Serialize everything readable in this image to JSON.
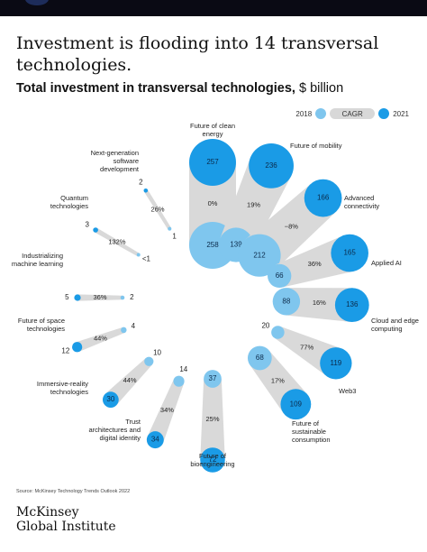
{
  "header": {
    "title": "Investment is flooding into 14 transversal technologies.",
    "subtitle_bold": "Total investment in transversal technologies,",
    "subtitle_unit": " $ billion"
  },
  "legend": {
    "start_label": "2018",
    "mid_label": "CAGR",
    "end_label": "2021"
  },
  "colors": {
    "y2018": "#7fc6ee",
    "y2021": "#1a9be6",
    "connector": "#d9d9d9",
    "label_dark": "#0b2a4a"
  },
  "chart_data": {
    "type": "radial-dumbbell",
    "title": "Total investment in transversal technologies, $ billion",
    "unit": "$ billion",
    "series": [
      {
        "name": "2018",
        "key": "v2018"
      },
      {
        "name": "2021",
        "key": "v2021"
      }
    ],
    "items": [
      {
        "name": "Future of clean energy",
        "v2018": 258,
        "v2021": 257,
        "cagr": "0%"
      },
      {
        "name": "Future of mobility",
        "v2018": 139,
        "v2021": 236,
        "cagr": "19%"
      },
      {
        "name": "Advanced connectivity",
        "v2018": 212,
        "v2021": 166,
        "cagr": "−8%"
      },
      {
        "name": "Applied AI",
        "v2018": 66,
        "v2021": 165,
        "cagr": "36%"
      },
      {
        "name": "Cloud and edge computing",
        "v2018": 88,
        "v2021": 136,
        "cagr": "16%"
      },
      {
        "name": "Web3",
        "v2018": 20,
        "v2021": 119,
        "cagr": "77%"
      },
      {
        "name": "Future of sustainable consumption",
        "v2018": 68,
        "v2021": 109,
        "cagr": "17%"
      },
      {
        "name": "Future of bioengineering",
        "v2018": 37,
        "v2021": 72,
        "cagr": "25%"
      },
      {
        "name": "Trust architectures and digital identity",
        "v2018": 14,
        "v2021": 34,
        "cagr": "34%"
      },
      {
        "name": "Immersive-reality technologies",
        "v2018": 10,
        "v2021": 30,
        "cagr": "44%"
      },
      {
        "name": "Future of space technologies",
        "v2018": 4,
        "v2021": 12,
        "cagr": "44%"
      },
      {
        "name": "Industrializing machine learning",
        "v2018": 2,
        "v2021": 5,
        "cagr": "36%"
      },
      {
        "name": "Quantum technologies",
        "v2018": "<1",
        "v2021": 3,
        "cagr": "132%"
      },
      {
        "name": "Next-generation software development",
        "v2018": 1,
        "v2021": 2,
        "cagr": "26%"
      }
    ]
  },
  "footer": {
    "source": "Source: McKinsey Technology Trends Outlook 2022",
    "brand_line1": "McKinsey",
    "brand_line2": "Global Institute"
  }
}
